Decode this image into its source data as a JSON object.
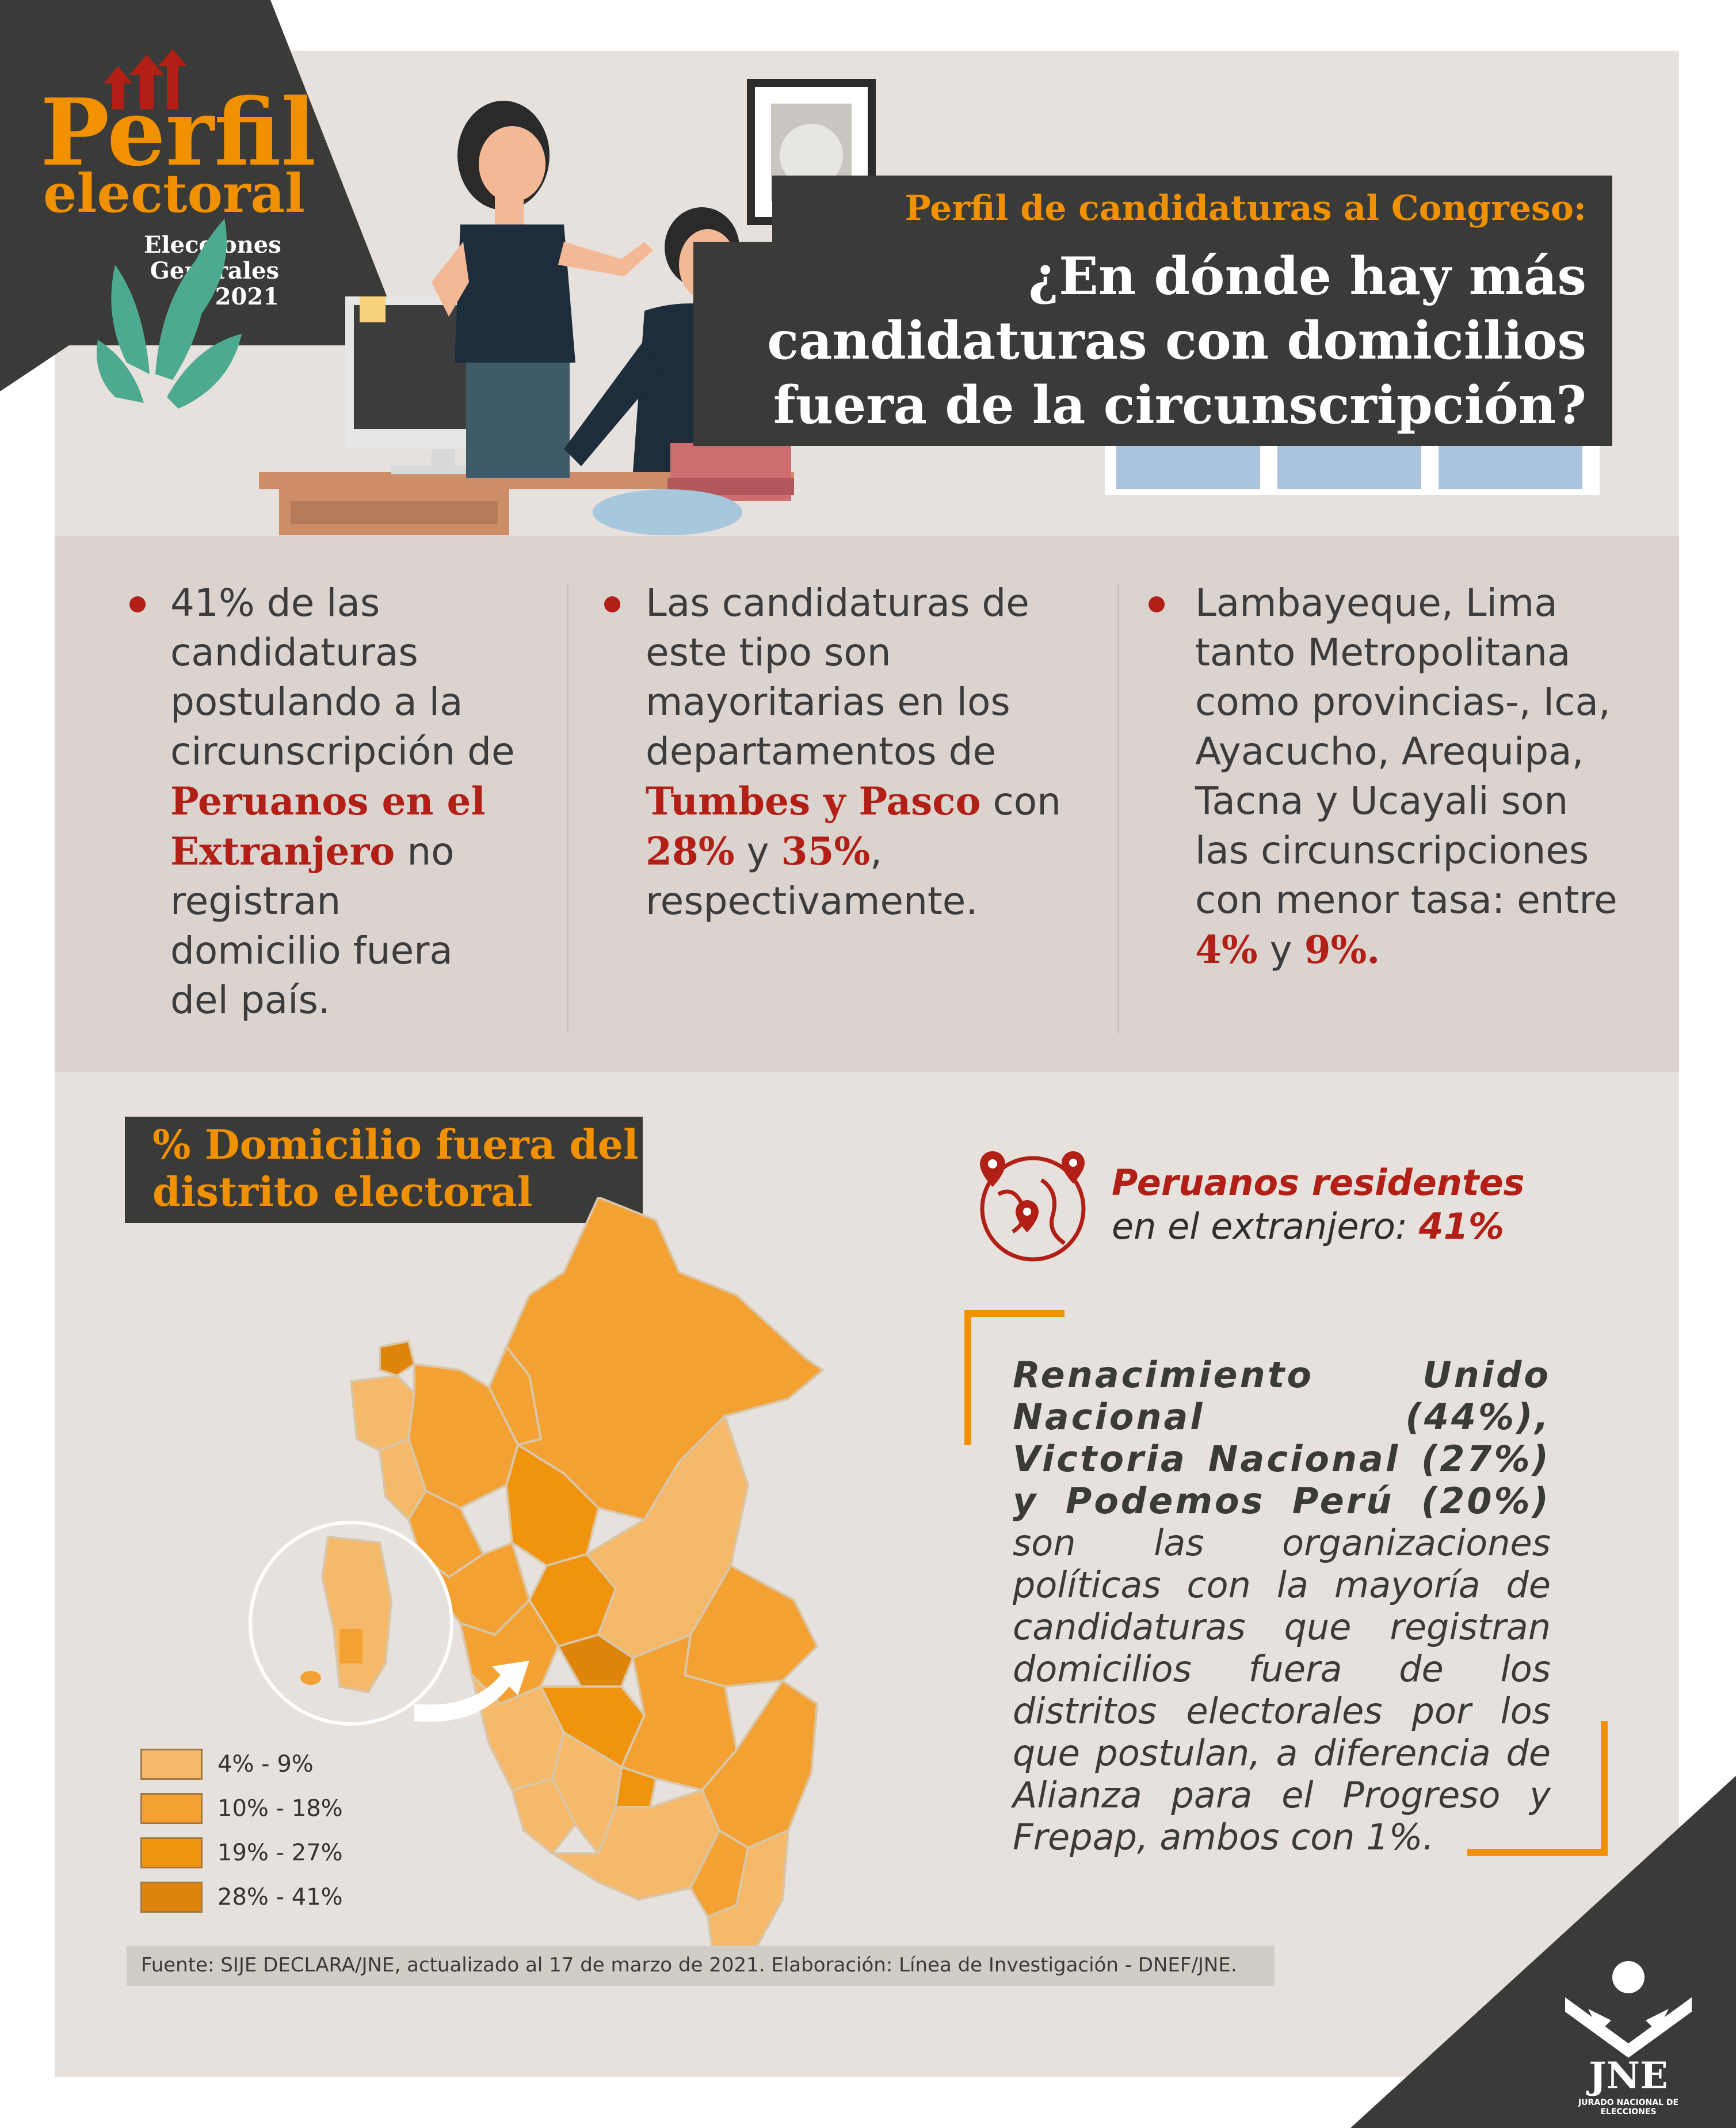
{
  "brand": {
    "title": "Perfil",
    "subtitle": "electoral",
    "edition_line1": "Elecciones",
    "edition_line2": "Generales",
    "edition_year": "2021"
  },
  "header": {
    "kicker": "Perfil de candidaturas al Congreso:",
    "question_line1": "¿En dónde hay más",
    "question_line2": "candidaturas con domicilios",
    "question_line3": "fuera de la circunscripción?"
  },
  "bullets": [
    {
      "pre": "41% de las candidaturas postulando a la circunscripción de",
      "highlight": "Peruanos en el Extranjero",
      "post": "no registran domicilio fuera del país."
    },
    {
      "pre": "Las candidaturas de este tipo son mayoritarias en los departamentos de",
      "highlight": "Tumbes y Pasco",
      "mid": "con",
      "value1": "28%",
      "and": "y",
      "value2": "35%",
      "post": ", respectivamente."
    },
    {
      "pre": "Lambayeque, Lima tanto Metropolitana como provincias-, Ica, Ayacucho, Arequipa, Tacna y Ucayali son las circunscripciones con menor tasa: entre",
      "value1": "4%",
      "and": "y",
      "value2": "9%."
    }
  ],
  "map": {
    "title_line1": "% Domicilio fuera del",
    "title_line2": "distrito electoral",
    "legend": [
      {
        "label": "4% - 9%",
        "color": "#f6b96a"
      },
      {
        "label": "10% - 18%",
        "color": "#f4a133"
      },
      {
        "label": "19% - 27%",
        "color": "#f09410"
      },
      {
        "label": "28% - 41%",
        "color": "#e0850c"
      }
    ]
  },
  "abroad": {
    "label_line1": "Peruanos residentes",
    "label_line2": "en el extranjero:",
    "value": "41%"
  },
  "quote": {
    "bold": "Renacimiento Unido Nacional (44%), Victoria Nacional (27%) y Podemos Perú (20%)",
    "rest": "son las organizaciones políticas con la mayoría de candidaturas que registran domicilios fuera de los distritos electorales por los que postulan, a diferencia de Alianza para el Progreso y Frepap, ambos con 1%."
  },
  "footer": {
    "source": "Fuente: SIJE DECLARA/JNE, actualizado al 17 de marzo de 2021. Elaboración: Línea de Investigación - DNEF/JNE."
  },
  "logo": {
    "initials": "JNE",
    "name": "JURADO NACIONAL DE ELECCIONES"
  },
  "colors": {
    "accent_red": "#b21f16",
    "accent_orange": "#f29100",
    "dark": "#3a3a38",
    "panel": "#e6e1dc",
    "bullet_panel": "#dbd3ce"
  }
}
